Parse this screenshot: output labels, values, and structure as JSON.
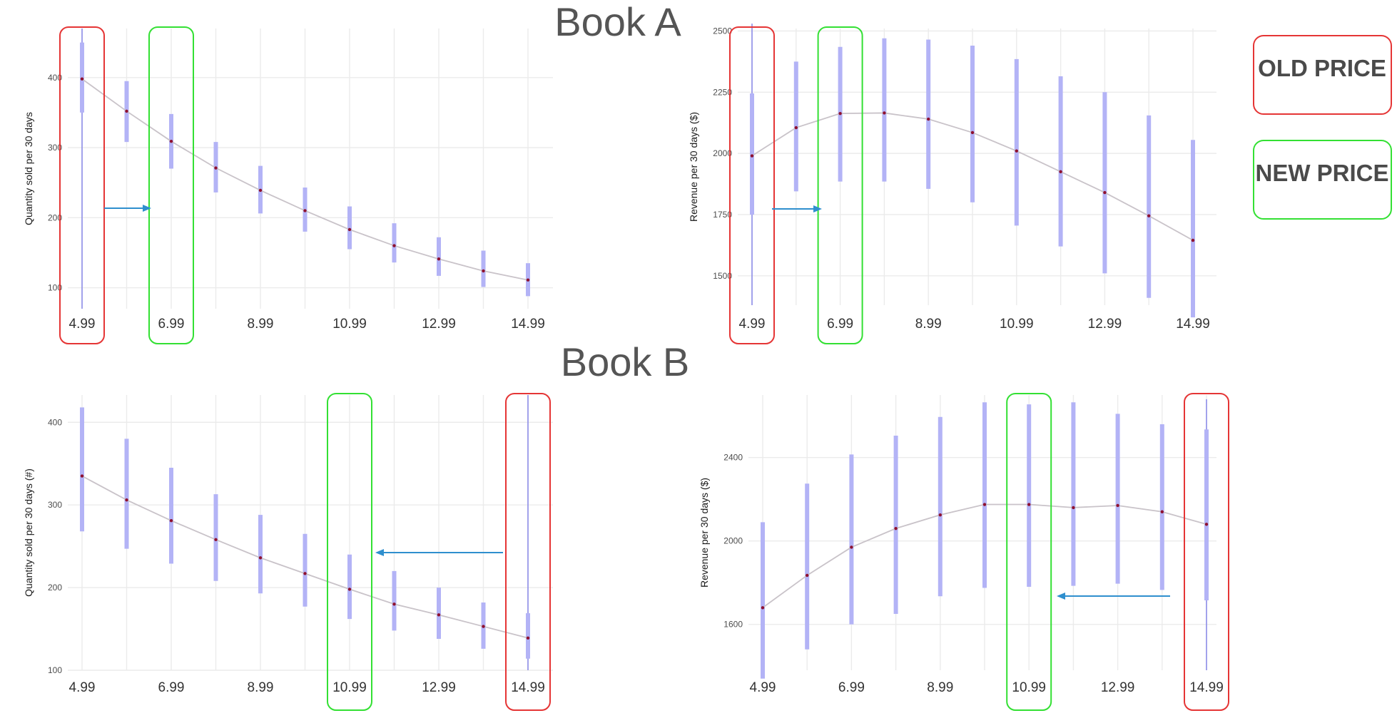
{
  "titles": {
    "book_a": "Book A",
    "book_b": "Book B"
  },
  "legend": {
    "old_price": "OLD PRICE",
    "new_price": "NEW PRICE",
    "old_color": "#e53535",
    "new_color": "#33e033"
  },
  "colors": {
    "interval": "#b3b3f6",
    "point": "#8e1030",
    "curve": "#c9c3c9",
    "arrow": "#2f8fce"
  },
  "chart_data": [
    {
      "id": "book-a-quantity",
      "type": "line",
      "group": "Book A",
      "ylabel": "Quantity sold per 30 days",
      "x": [
        4.99,
        5.99,
        6.99,
        7.99,
        8.99,
        9.99,
        10.99,
        11.99,
        12.99,
        13.99,
        14.99
      ],
      "xticks": [
        "4.99",
        "6.99",
        "8.99",
        "10.99",
        "12.99",
        "14.99"
      ],
      "yticks": [
        100,
        200,
        300,
        400
      ],
      "ylim": [
        70,
        470
      ],
      "series": [
        {
          "values": [
            398,
            352,
            309,
            271,
            239,
            210,
            183,
            160,
            141,
            124,
            111
          ],
          "low": [
            350,
            308,
            270,
            236,
            206,
            180,
            155,
            136,
            117,
            101,
            88
          ],
          "high": [
            450,
            395,
            348,
            308,
            274,
            243,
            216,
            192,
            172,
            153,
            135
          ]
        }
      ],
      "old_price": 4.99,
      "new_price": 6.99,
      "old_price_full_range": [
        70,
        470
      ]
    },
    {
      "id": "book-a-revenue",
      "type": "line",
      "group": "Book A",
      "ylabel": "Revenue per 30 days ($)",
      "x": [
        4.99,
        5.99,
        6.99,
        7.99,
        8.99,
        9.99,
        10.99,
        11.99,
        12.99,
        13.99,
        14.99
      ],
      "xticks": [
        "4.99",
        "6.99",
        "8.99",
        "10.99",
        "12.99",
        "14.99"
      ],
      "yticks": [
        1500,
        1750,
        2000,
        2250,
        2500
      ],
      "ylim": [
        1380,
        2510
      ],
      "series": [
        {
          "values": [
            1990,
            2105,
            2163,
            2165,
            2140,
            2085,
            2010,
            1925,
            1840,
            1745,
            1645
          ],
          "low": [
            1750,
            1845,
            1885,
            1885,
            1855,
            1800,
            1705,
            1620,
            1510,
            1410,
            1330
          ],
          "high": [
            2245,
            2375,
            2435,
            2470,
            2465,
            2440,
            2385,
            2315,
            2250,
            2155,
            2055
          ]
        }
      ],
      "old_price": 4.99,
      "new_price": 6.99,
      "old_price_full_range": [
        1380,
        2530
      ]
    },
    {
      "id": "book-b-quantity",
      "type": "line",
      "group": "Book B",
      "ylabel": "Quantity sold per 30 days (#)",
      "x": [
        4.99,
        5.99,
        6.99,
        7.99,
        8.99,
        9.99,
        10.99,
        11.99,
        12.99,
        13.99,
        14.99
      ],
      "xticks": [
        "4.99",
        "6.99",
        "8.99",
        "10.99",
        "12.99",
        "14.99"
      ],
      "yticks": [
        100,
        200,
        300,
        400
      ],
      "ylim": [
        100,
        433
      ],
      "series": [
        {
          "values": [
            335,
            306,
            281,
            258,
            236,
            217,
            198,
            180,
            167,
            153,
            139
          ],
          "low": [
            268,
            247,
            229,
            208,
            193,
            177,
            162,
            148,
            138,
            126,
            114
          ],
          "high": [
            418,
            380,
            345,
            313,
            288,
            265,
            240,
            220,
            200,
            182,
            169
          ]
        }
      ],
      "old_price": 14.99,
      "new_price": 10.99,
      "old_price_full_range": [
        100,
        433
      ]
    },
    {
      "id": "book-b-revenue",
      "type": "line",
      "group": "Book B",
      "ylabel": "Revenue per 30 days ($)",
      "x": [
        4.99,
        5.99,
        6.99,
        7.99,
        8.99,
        9.99,
        10.99,
        11.99,
        12.99,
        13.99,
        14.99
      ],
      "xticks": [
        "4.99",
        "6.99",
        "8.99",
        "10.99",
        "12.99",
        "14.99"
      ],
      "yticks": [
        1600,
        2000,
        2400
      ],
      "ylim": [
        1380,
        2700
      ],
      "series": [
        {
          "values": [
            1680,
            1835,
            1970,
            2060,
            2125,
            2175,
            2175,
            2160,
            2170,
            2140,
            2080
          ],
          "low": [
            1340,
            1480,
            1600,
            1650,
            1735,
            1775,
            1780,
            1785,
            1795,
            1765,
            1715
          ],
          "high": [
            2090,
            2275,
            2415,
            2505,
            2595,
            2665,
            2655,
            2665,
            2610,
            2560,
            2535
          ]
        }
      ],
      "old_price": 14.99,
      "new_price": 10.99,
      "old_price_full_range": [
        1380,
        2680
      ]
    }
  ]
}
